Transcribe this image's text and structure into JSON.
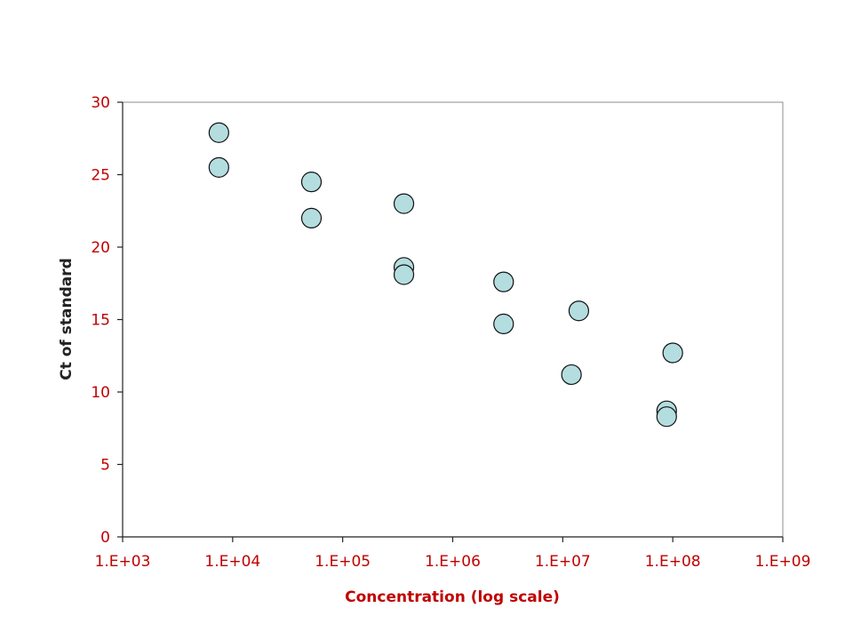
{
  "chart_data": {
    "type": "scatter",
    "title": "",
    "xlabel": "Concentration (log scale)",
    "ylabel": "Ct of standard",
    "x_scale": "log",
    "xlim": [
      1000,
      1000000000
    ],
    "ylim": [
      0,
      30
    ],
    "x_ticks": [
      "1.E+03",
      "1.E+04",
      "1.E+05",
      "1.E+06",
      "1.E+07",
      "1.E+08",
      "1.E+09"
    ],
    "y_ticks": [
      "0",
      "5",
      "10",
      "15",
      "20",
      "25",
      "30"
    ],
    "grid": false,
    "legend": "none",
    "marker_color": "#b4dde0",
    "marker_edge_color": "#111111",
    "tick_label_color": "#c00000",
    "points": [
      {
        "x": 7500,
        "y": 27.9
      },
      {
        "x": 7500,
        "y": 25.5
      },
      {
        "x": 52000,
        "y": 24.5
      },
      {
        "x": 52000,
        "y": 22.0
      },
      {
        "x": 360000,
        "y": 23.0
      },
      {
        "x": 360000,
        "y": 18.6
      },
      {
        "x": 360000,
        "y": 18.1
      },
      {
        "x": 2900000,
        "y": 17.6
      },
      {
        "x": 2900000,
        "y": 14.7
      },
      {
        "x": 14000000,
        "y": 15.6
      },
      {
        "x": 12000000,
        "y": 11.2
      },
      {
        "x": 100000000,
        "y": 12.7
      },
      {
        "x": 88000000,
        "y": 8.7
      },
      {
        "x": 88000000,
        "y": 8.3
      }
    ]
  }
}
